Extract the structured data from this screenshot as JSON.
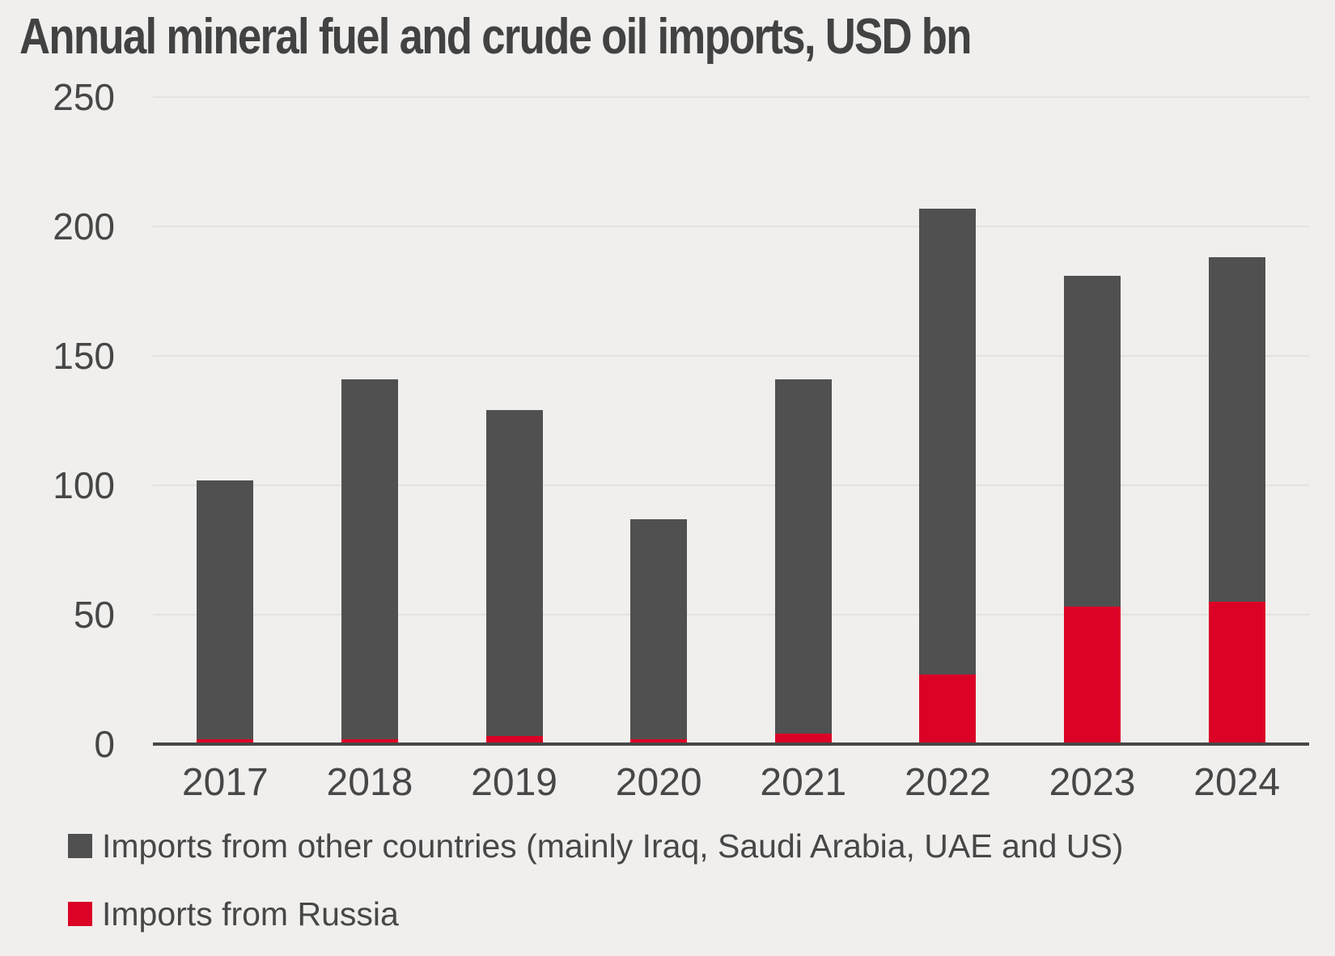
{
  "title": "Annual mineral fuel and crude oil imports, USD bn",
  "chart_data": {
    "type": "bar",
    "stacked": true,
    "title": "Annual mineral fuel and crude oil imports, USD bn",
    "categories": [
      "2017",
      "2018",
      "2019",
      "2020",
      "2021",
      "2022",
      "2023",
      "2024"
    ],
    "series": [
      {
        "name": "Imports from Russia",
        "color": "#dc0226",
        "values": [
          2,
          2,
          3,
          2,
          4,
          27,
          53,
          55
        ]
      },
      {
        "name": "Imports from other countries (mainly Iraq, Saudi Arabia, UAE and US)",
        "color": "#505050",
        "values": [
          100,
          139,
          126,
          85,
          137,
          180,
          128,
          133
        ]
      }
    ],
    "stacked_totals": [
      102,
      141,
      129,
      87,
      141,
      207,
      181,
      188
    ],
    "ylim": [
      0,
      250
    ],
    "yticks": [
      0,
      50,
      100,
      150,
      200,
      250
    ],
    "xlabel": "",
    "ylabel": "",
    "grid": true,
    "legend_position": "bottom"
  },
  "legend": {
    "items": [
      {
        "label": "Imports from other countries (mainly Iraq, Saudi Arabia, UAE and US)",
        "color": "#505050"
      },
      {
        "label": "Imports from Russia",
        "color": "#dc0226"
      }
    ]
  },
  "colors": {
    "background": "#f0efed",
    "gridline": "#e4e2e0",
    "axis": "#474747",
    "text": "#474747",
    "bar_other": "#505050",
    "bar_russia": "#dc0226"
  }
}
